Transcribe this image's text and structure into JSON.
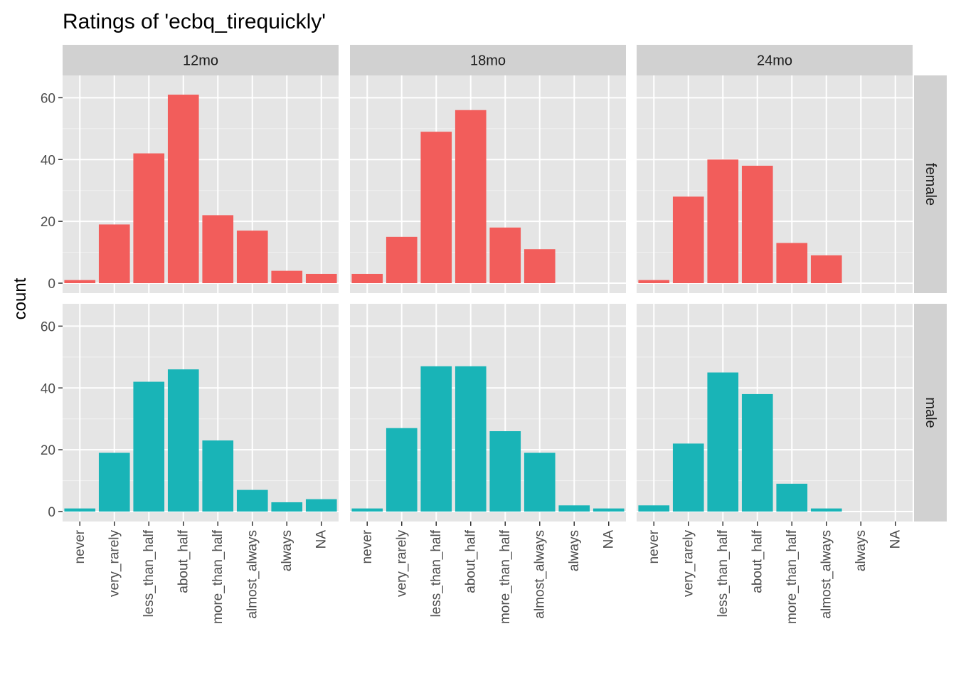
{
  "chart_data": {
    "type": "bar",
    "title": "Ratings of 'ecbq_tirequickly'",
    "xlabel": "",
    "ylabel": "count",
    "ylim": [
      0,
      64
    ],
    "yticks": [
      0,
      20,
      40,
      60
    ],
    "categories": [
      "never",
      "very_rarely",
      "less_than_half",
      "about_half",
      "more_than_half",
      "almost_always",
      "always",
      "NA"
    ],
    "facet_columns": [
      "12mo",
      "18mo",
      "24mo"
    ],
    "facet_rows": [
      "female",
      "male"
    ],
    "row_colors": {
      "female": "#F25D5B",
      "male": "#19B4B7"
    },
    "panel_background": "#E5E5E5",
    "strip_background": "#D1D1D1",
    "grid": true,
    "panels": [
      {
        "column": "12mo",
        "row": "female",
        "values": [
          1,
          19,
          42,
          61,
          22,
          17,
          4,
          3
        ]
      },
      {
        "column": "18mo",
        "row": "female",
        "values": [
          3,
          15,
          49,
          56,
          18,
          11,
          0,
          0
        ]
      },
      {
        "column": "24mo",
        "row": "female",
        "values": [
          1,
          28,
          40,
          38,
          13,
          9,
          0,
          0
        ]
      },
      {
        "column": "12mo",
        "row": "male",
        "values": [
          1,
          19,
          42,
          46,
          23,
          7,
          3,
          4
        ]
      },
      {
        "column": "18mo",
        "row": "male",
        "values": [
          1,
          27,
          47,
          47,
          26,
          19,
          2,
          1
        ]
      },
      {
        "column": "24mo",
        "row": "male",
        "values": [
          2,
          22,
          45,
          38,
          9,
          1,
          0,
          0
        ]
      }
    ]
  }
}
